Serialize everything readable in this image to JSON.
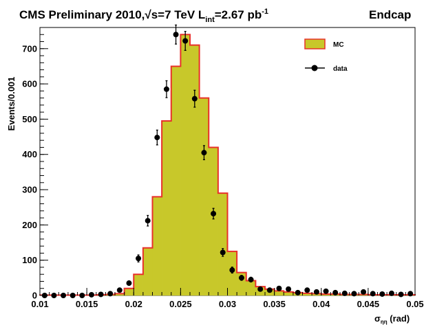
{
  "chart_data": {
    "type": "bar",
    "title": "CMS Preliminary 2010,√s=7 TeV L",
    "title_sub": "int",
    "title_lumi": "=2.67 pb",
    "title_sup": "-1",
    "title_region": "Endcap",
    "ylabel": "Events/0.001",
    "xlabel_symbol": "σ",
    "xlabel_sub": "ηη",
    "xlabel_unit": " (rad)",
    "xlim": [
      0.01,
      0.05
    ],
    "ylim": [
      0,
      760
    ],
    "x_ticks": [
      0.01,
      0.015,
      0.02,
      0.025,
      0.03,
      0.035,
      0.04,
      0.045,
      0.05
    ],
    "x_tick_labels": [
      "0.01",
      "0.015",
      "0.02",
      "0.025",
      "0.03",
      "0.035",
      "0.04",
      "0.045",
      "0.05"
    ],
    "y_ticks": [
      0,
      100,
      200,
      300,
      400,
      500,
      600,
      700
    ],
    "y_tick_labels": [
      "0",
      "100",
      "200",
      "300",
      "400",
      "500",
      "600",
      "700"
    ],
    "bin_width": 0.001,
    "bin_edges_start": 0.01,
    "series": [
      {
        "name": "MC",
        "style": "filled-histogram",
        "fill": "#c8c82a",
        "line": "#e8302a",
        "values": [
          1,
          1,
          1,
          1,
          1,
          1,
          2,
          3,
          5,
          20,
          60,
          135,
          280,
          495,
          650,
          740,
          710,
          560,
          420,
          290,
          125,
          65,
          42,
          25,
          18,
          13,
          10,
          8,
          6,
          5,
          4,
          4,
          3,
          3,
          3,
          2,
          2,
          2,
          2,
          2
        ]
      },
      {
        "name": "data",
        "style": "points",
        "color": "#000000",
        "x": [
          0.0105,
          0.0115,
          0.0125,
          0.0135,
          0.0145,
          0.0155,
          0.0165,
          0.0175,
          0.0185,
          0.0195,
          0.0205,
          0.0215,
          0.0225,
          0.0235,
          0.0245,
          0.0255,
          0.0265,
          0.0275,
          0.0285,
          0.0295,
          0.0305,
          0.0315,
          0.0325,
          0.0335,
          0.0345,
          0.0355,
          0.0365,
          0.0375,
          0.0385,
          0.0395,
          0.0405,
          0.0415,
          0.0425,
          0.0435,
          0.0445,
          0.0455,
          0.0465,
          0.0475,
          0.0485,
          0.0495
        ],
        "y": [
          0,
          0,
          0,
          0,
          0,
          2,
          3,
          5,
          15,
          35,
          105,
          212,
          448,
          585,
          740,
          722,
          558,
          405,
          232,
          122,
          72,
          50,
          45,
          18,
          15,
          20,
          18,
          8,
          15,
          10,
          12,
          8,
          6,
          5,
          10,
          5,
          4,
          6,
          3,
          5
        ],
        "err": [
          0,
          0,
          0,
          0,
          0,
          1.4,
          1.7,
          2.2,
          3.9,
          5.9,
          10,
          15,
          21,
          24,
          27,
          27,
          24,
          20,
          15,
          11,
          8.5,
          7.1,
          6.7,
          4.2,
          3.9,
          4.5,
          4.2,
          2.8,
          3.9,
          3.2,
          3.5,
          2.8,
          2.4,
          2.2,
          3.2,
          2.2,
          2,
          2.4,
          1.7,
          2.2
        ]
      }
    ],
    "legend": {
      "placement": "top-right",
      "entries": [
        {
          "label": "MC",
          "kind": "fill"
        },
        {
          "label": "data",
          "kind": "marker"
        }
      ]
    },
    "grid": false
  }
}
